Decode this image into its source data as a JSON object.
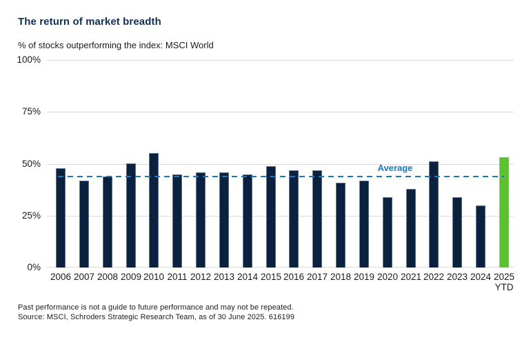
{
  "header": {
    "title": "The return of market breadth",
    "subtitle": "% of stocks outperforming the index: MSCI World"
  },
  "chart_data": {
    "type": "bar",
    "title": "The return of market breadth",
    "subtitle": "% of stocks outperforming the index: MSCI World",
    "categories": [
      "2006",
      "2007",
      "2008",
      "2009",
      "2010",
      "2011",
      "2012",
      "2013",
      "2014",
      "2015",
      "2016",
      "2017",
      "2018",
      "2019",
      "2020",
      "2021",
      "2022",
      "2023",
      "2024",
      "2025 YTD"
    ],
    "values": [
      48,
      42,
      44,
      50,
      55,
      45,
      46,
      46,
      45,
      49,
      47,
      47,
      41,
      42,
      34,
      38,
      51,
      34,
      30,
      53
    ],
    "xlabel": "",
    "ylabel": "% of stocks outperforming the index: MSCI World",
    "ylim": [
      0,
      100
    ],
    "yticks": [
      "0%",
      "25%",
      "50%",
      "75%",
      "100%"
    ],
    "grid": true,
    "legend": "none",
    "average_line": {
      "label": "Average",
      "value": 44
    },
    "highlight_index": 19,
    "colors": {
      "bar": "#0A2240",
      "highlight": "#5BC22E",
      "average": "#1878BE",
      "gridline": "#D9D9D9",
      "title": "#0F3157"
    }
  },
  "footer": {
    "line1": "Past performance is not a guide to future performance and may not be repeated.",
    "line2": "Source: MSCI, Schroders Strategic Research Team, as of 30 June 2025. 616199"
  }
}
